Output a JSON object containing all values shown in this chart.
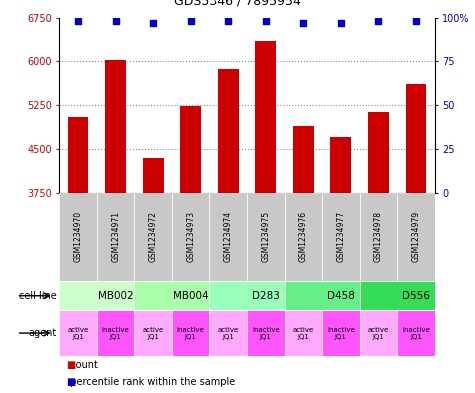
{
  "title": "GDS5346 / 7895954",
  "samples": [
    "GSM1234970",
    "GSM1234971",
    "GSM1234972",
    "GSM1234973",
    "GSM1234974",
    "GSM1234975",
    "GSM1234976",
    "GSM1234977",
    "GSM1234978",
    "GSM1234979"
  ],
  "counts": [
    5050,
    6020,
    4350,
    5230,
    5870,
    6350,
    4900,
    4700,
    5130,
    5620
  ],
  "percentiles": [
    98,
    98,
    97,
    98,
    98,
    98,
    97,
    97,
    98,
    98
  ],
  "ylim_left": [
    3750,
    6750
  ],
  "yticks_left": [
    3750,
    4500,
    5250,
    6000,
    6750
  ],
  "ylim_right": [
    0,
    100
  ],
  "yticks_right": [
    0,
    25,
    50,
    75,
    100
  ],
  "bar_color": "#cc0000",
  "dot_color": "#0000cc",
  "cell_lines": [
    {
      "label": "MB002",
      "span": [
        0,
        2
      ],
      "color": "#ccffcc"
    },
    {
      "label": "MB004",
      "span": [
        2,
        4
      ],
      "color": "#aaffaa"
    },
    {
      "label": "D283",
      "span": [
        4,
        6
      ],
      "color": "#99ffbb"
    },
    {
      "label": "D458",
      "span": [
        6,
        8
      ],
      "color": "#66ee88"
    },
    {
      "label": "D556",
      "span": [
        8,
        10
      ],
      "color": "#33dd55"
    }
  ],
  "agents": [
    {
      "label": "active\nJQ1",
      "color": "#ffaaff"
    },
    {
      "label": "inactive\nJQ1",
      "color": "#ff55ff"
    },
    {
      "label": "active\nJQ1",
      "color": "#ffaaff"
    },
    {
      "label": "inactive\nJQ1",
      "color": "#ff55ff"
    },
    {
      "label": "active\nJQ1",
      "color": "#ffaaff"
    },
    {
      "label": "inactive\nJQ1",
      "color": "#ff55ff"
    },
    {
      "label": "active\nJQ1",
      "color": "#ffaaff"
    },
    {
      "label": "inactive\nJQ1",
      "color": "#ff55ff"
    },
    {
      "label": "active\nJQ1",
      "color": "#ffaaff"
    },
    {
      "label": "inactive\nJQ1",
      "color": "#ff55ff"
    }
  ],
  "gsm_bg": "#c8c8c8",
  "legend_count_color": "#cc0000",
  "legend_pct_color": "#0000cc",
  "grid_color": "#888888",
  "background_color": "#ffffff"
}
